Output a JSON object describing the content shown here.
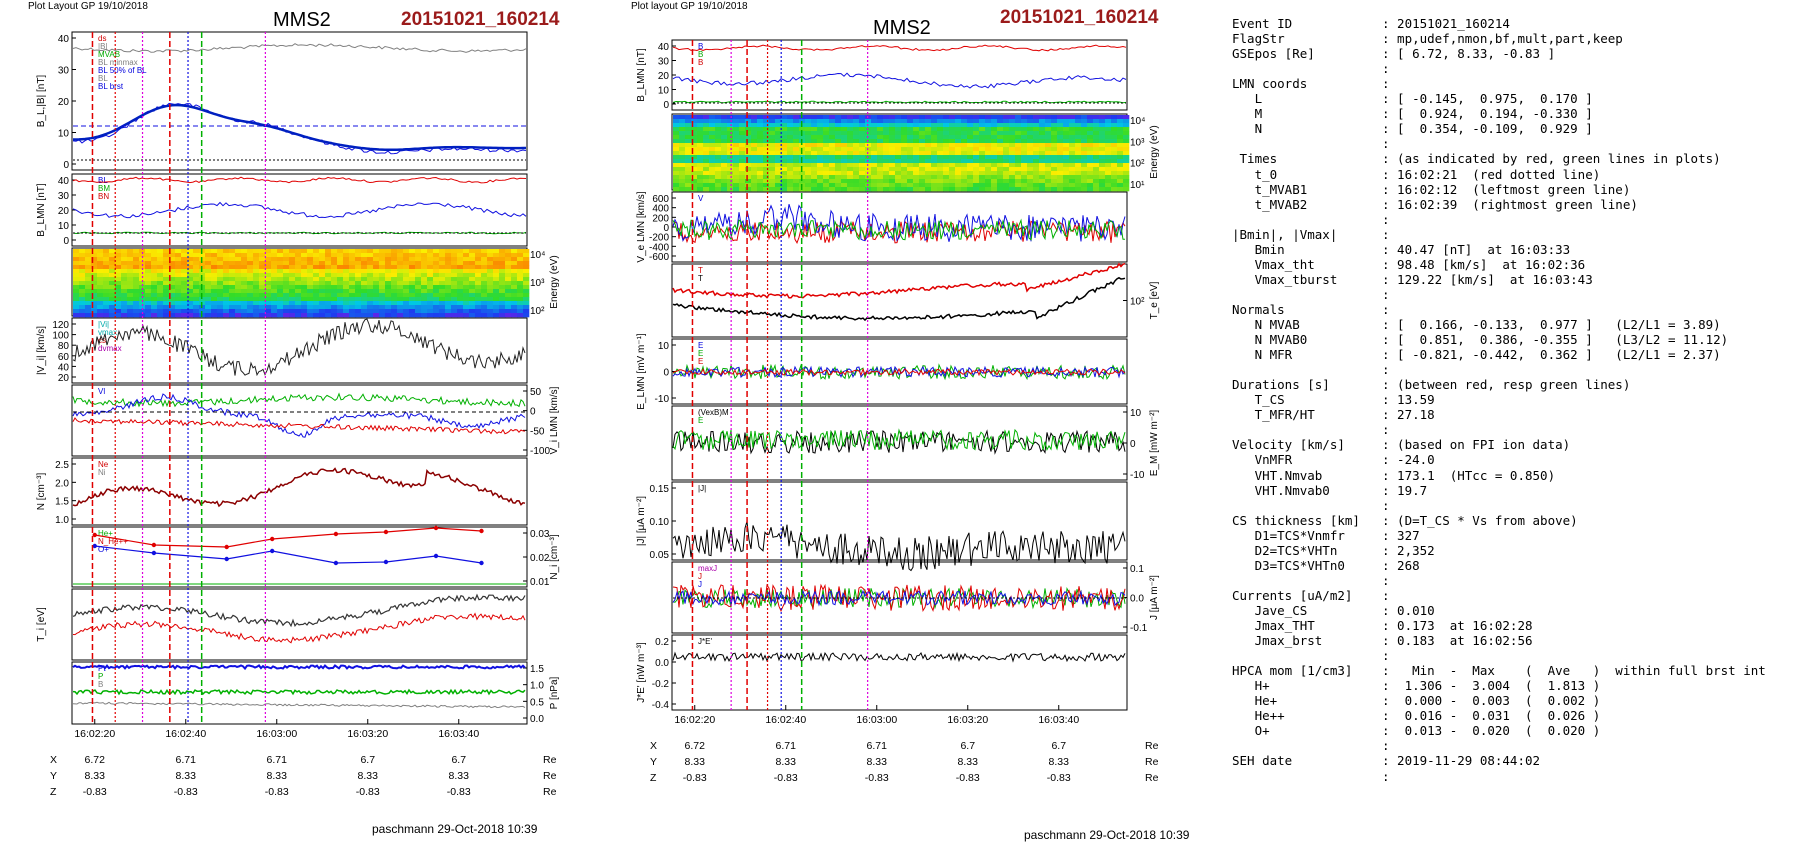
{
  "left": {
    "header": "Plot Layout GP 19/10/2018",
    "spacecraft": "MMS2",
    "event": "20151021_160214",
    "footer": "paschmann 29-Oct-2018 10:39",
    "time_ticks": [
      "16:02:20",
      "16:02:40",
      "16:03:00",
      "16:03:20",
      "16:03:40"
    ],
    "panels": [
      {
        "ylabel": "B_L,|B| [nT]",
        "ticks": [
          "40",
          "30",
          "20",
          "10",
          "0"
        ],
        "side": "left",
        "legend": [
          "ds",
          "|B|",
          "MVAB",
          "BL minmax",
          "BL 50% of BL",
          "BL",
          "BL brst"
        ],
        "legend_colors": [
          "#d00000",
          "#808080",
          "#00aa00",
          "#808080",
          "#0000dd",
          "#808080",
          "#0000dd"
        ]
      },
      {
        "ylabel": "B_LMN [nT]",
        "ticks": [
          "40",
          "30",
          "20",
          "10",
          "0"
        ],
        "side": "left",
        "legend": [
          "BL",
          "BM",
          "BN"
        ],
        "legend_colors": [
          "#0000dd",
          "#00aa00",
          "#d00000"
        ]
      },
      {
        "ylabel": "Energy (eV)",
        "ticks": [
          "10⁴",
          "10³",
          "10²"
        ],
        "side": "right",
        "legend": [],
        "legend_colors": []
      },
      {
        "ylabel": "|V_i| [km/s]",
        "ticks": [
          "120",
          "100",
          "80",
          "60",
          "40",
          "20"
        ],
        "side": "left",
        "legend": [
          "|Vi|",
          "vmax",
          "cs",
          "dvmax"
        ],
        "legend_colors": [
          "#00aaaa",
          "#00aaaa",
          "#d00000",
          "#aa00aa"
        ]
      },
      {
        "ylabel": "V_i LMN [km/s]",
        "ticks": [
          "50",
          "0",
          "-50",
          "-100"
        ],
        "side": "right",
        "legend": [
          "Vl"
        ],
        "legend_colors": [
          "#0000dd"
        ]
      },
      {
        "ylabel": "N [cm⁻³]",
        "ticks": [
          "2.5",
          "2.0",
          "1.5",
          "1.0"
        ],
        "side": "left",
        "legend": [
          "Ne",
          "Ni"
        ],
        "legend_colors": [
          "#d00000",
          "#808080"
        ]
      },
      {
        "ylabel": "N_i [cm⁻³]",
        "ticks": [
          "0.03",
          "0.02",
          "0.01"
        ],
        "side": "right",
        "legend": [
          "He+",
          "N_He++",
          "O+"
        ],
        "legend_colors": [
          "#00aa00",
          "#d00000",
          "#0000dd"
        ]
      },
      {
        "ylabel": "T_i [eV]",
        "ticks": [],
        "side": "left",
        "legend": [],
        "legend_colors": []
      },
      {
        "ylabel": "P [nPa]",
        "ticks": [
          "1.5",
          "1.0",
          "0.5",
          "0.0"
        ],
        "side": "right",
        "legend": [
          "Pt",
          "P",
          "B"
        ],
        "legend_colors": [
          "#0000dd",
          "#00aa00",
          "#808080"
        ]
      }
    ],
    "pos_table": {
      "labels": [
        "X",
        "Y",
        "Z"
      ],
      "units": [
        "Re",
        "Re",
        "Re"
      ],
      "rows": [
        [
          "6.72",
          "6.71",
          "6.71",
          "6.7",
          "6.7"
        ],
        [
          "8.33",
          "8.33",
          "8.33",
          "8.33",
          "8.33"
        ],
        [
          "-0.83",
          "-0.83",
          "-0.83",
          "-0.83",
          "-0.83"
        ]
      ]
    }
  },
  "middle": {
    "header": "Plot layout GP 19/10/2018",
    "spacecraft": "MMS2",
    "event": "20151021_160214",
    "footer": "paschmann 29-Oct-2018 10:39",
    "time_ticks": [
      "16:02:20",
      "16:02:40",
      "16:03:00",
      "16:03:20",
      "16:03:40"
    ],
    "panels": [
      {
        "ylabel": "B_LMN [nT]",
        "ticks": [
          "40",
          "30",
          "20",
          "10",
          "0"
        ],
        "side": "left",
        "legend": [
          "B",
          "B",
          "B"
        ],
        "legend_colors": [
          "#0000dd",
          "#00aa00",
          "#d00000"
        ]
      },
      {
        "ylabel": "Energy (eV)",
        "ticks": [
          "10⁴",
          "10³",
          "10²",
          "10¹"
        ],
        "side": "right",
        "legend": [],
        "legend_colors": []
      },
      {
        "ylabel": "V_e LMN [km/s]",
        "ticks": [
          "600",
          "400",
          "200",
          "0",
          "-200",
          "-400",
          "-600"
        ],
        "side": "left",
        "legend": [
          "V"
        ],
        "legend_colors": [
          "#0000dd"
        ]
      },
      {
        "ylabel": "T_e [eV]",
        "ticks": [
          "10²"
        ],
        "side": "right",
        "legend": [
          "T",
          "T"
        ],
        "legend_colors": [
          "#d00000",
          "#000000"
        ]
      },
      {
        "ylabel": "E_LMN [mV m⁻¹]",
        "ticks": [
          "10",
          "0",
          "-10"
        ],
        "side": "left",
        "legend": [
          "E",
          "E",
          "E"
        ],
        "legend_colors": [
          "#0000dd",
          "#00aa00",
          "#d00000"
        ]
      },
      {
        "ylabel": "E_M [mW m⁻²]",
        "ticks": [
          "10",
          "0",
          "-10"
        ],
        "side": "right",
        "legend": [
          "(VexB)M",
          "E"
        ],
        "legend_colors": [
          "#000000",
          "#00aa00"
        ]
      },
      {
        "ylabel": "|J| [μA m⁻²]",
        "ticks": [
          "0.15",
          "0.10",
          "0.05"
        ],
        "side": "left",
        "legend": [
          "|J|"
        ],
        "legend_colors": [
          "#000000"
        ]
      },
      {
        "ylabel": "J [μA m⁻²]",
        "ticks": [
          "0.1",
          "0.0",
          "-0.1"
        ],
        "side": "right",
        "legend": [
          "maxJ",
          "J",
          "J"
        ],
        "legend_colors": [
          "#aa00aa",
          "#d00000",
          "#0000dd"
        ]
      },
      {
        "ylabel": "J*E' [nW m⁻³]",
        "ticks": [
          "0.2",
          "0.0",
          "-0.2",
          "-0.4"
        ],
        "side": "left",
        "legend": [
          "J*E'"
        ],
        "legend_colors": [
          "#000000"
        ]
      }
    ],
    "pos_table": {
      "labels": [
        "X",
        "Y",
        "Z"
      ],
      "units": [
        "Re",
        "Re",
        "Re"
      ],
      "rows": [
        [
          "6.72",
          "6.71",
          "6.71",
          "6.7",
          "6.7"
        ],
        [
          "8.33",
          "8.33",
          "8.33",
          "8.33",
          "8.33"
        ],
        [
          "-0.83",
          "-0.83",
          "-0.83",
          "-0.83",
          "-0.83"
        ]
      ]
    }
  },
  "summary": {
    "lines": [
      {
        "k": "Event ID",
        "v": ": 20151021_160214"
      },
      {
        "k": "FlagStr",
        "v": ": mp,udef,nmon,bf,mult,part,keep"
      },
      {
        "k": "GSEpos [Re]",
        "v": ": [ 6.72, 8.33, -0.83 ]"
      },
      {
        "k": "",
        "v": ":"
      },
      {
        "k": "LMN coords",
        "v": ":"
      },
      {
        "k": "   L",
        "v": ": [ -0.145,  0.975,  0.170 ]"
      },
      {
        "k": "   M",
        "v": ": [  0.924,  0.194, -0.330 ]"
      },
      {
        "k": "   N",
        "v": ": [  0.354, -0.109,  0.929 ]"
      },
      {
        "k": "",
        "v": ":"
      },
      {
        "k": " Times",
        "v": ": (as indicated by red, green lines in plots)"
      },
      {
        "k": "   t_0",
        "v": ": 16:02:21  (red dotted line)"
      },
      {
        "k": "   t_MVAB1",
        "v": ": 16:02:12  (leftmost green line)"
      },
      {
        "k": "   t_MVAB2",
        "v": ": 16:02:39  (rightmost green line)"
      },
      {
        "k": "",
        "v": ":"
      },
      {
        "k": "|Bmin|, |Vmax|",
        "v": ":"
      },
      {
        "k": "   Bmin",
        "v": ": 40.47 [nT]  at 16:03:33"
      },
      {
        "k": "   Vmax_tht",
        "v": ": 98.48 [km/s]  at 16:02:36"
      },
      {
        "k": "   Vmax_tburst",
        "v": ": 129.22 [km/s]  at 16:03:43"
      },
      {
        "k": "",
        "v": ":"
      },
      {
        "k": "Normals",
        "v": ":"
      },
      {
        "k": "   N MVAB",
        "v": ": [  0.166, -0.133,  0.977 ]   (L2/L1 = 3.89)"
      },
      {
        "k": "   N MVAB0",
        "v": ": [  0.851,  0.386, -0.355 ]   (L3/L2 = 11.12)"
      },
      {
        "k": "   N MFR",
        "v": ": [ -0.821, -0.442,  0.362 ]   (L2/L1 = 2.37)"
      },
      {
        "k": "",
        "v": ":"
      },
      {
        "k": "Durations [s]",
        "v": ": (between red, resp green lines)"
      },
      {
        "k": "   T_CS",
        "v": ": 13.59"
      },
      {
        "k": "   T_MFR/HT",
        "v": ": 27.18"
      },
      {
        "k": "",
        "v": ":"
      },
      {
        "k": "Velocity [km/s]",
        "v": ": (based on FPI ion data)"
      },
      {
        "k": "   VnMFR",
        "v": ": -24.0"
      },
      {
        "k": "   VHT.Nmvab",
        "v": ": 173.1  (HTcc = 0.850)"
      },
      {
        "k": "   VHT.Nmvab0",
        "v": ": 19.7"
      },
      {
        "k": "",
        "v": ":"
      },
      {
        "k": "CS thickness [km]",
        "v": ": (D=T_CS * Vs from above)"
      },
      {
        "k": "   D1=TCS*Vnmfr",
        "v": ": 327"
      },
      {
        "k": "   D2=TCS*VHTn",
        "v": ": 2,352"
      },
      {
        "k": "   D3=TCS*VHTn0",
        "v": ": 268"
      },
      {
        "k": "",
        "v": ":"
      },
      {
        "k": "Currents [uA/m2]",
        "v": ":"
      },
      {
        "k": "   Jave_CS",
        "v": ": 0.010"
      },
      {
        "k": "   Jmax_THT",
        "v": ": 0.173  at 16:02:28"
      },
      {
        "k": "   Jmax_brst",
        "v": ": 0.183  at 16:02:56"
      },
      {
        "k": "",
        "v": ":"
      },
      {
        "k": "HPCA mom [1/cm3]",
        "v": ":   Min  -  Max    (  Ave   )  within full brst int"
      },
      {
        "k": "   H+",
        "v": ":  1.306 -  3.004  (  1.813 )"
      },
      {
        "k": "   He+",
        "v": ":  0.000 -  0.003  (  0.002 )"
      },
      {
        "k": "   He++",
        "v": ":  0.016 -  0.031  (  0.026 )"
      },
      {
        "k": "   O+",
        "v": ":  0.013 -  0.020  (  0.020 )"
      },
      {
        "k": "",
        "v": ":"
      },
      {
        "k": "SEH date",
        "v": ": 2019-11-29 08:44:02"
      },
      {
        "k": "",
        "v": ":"
      }
    ]
  },
  "colors": {
    "red": "#e00000",
    "green": "#00b000",
    "blue": "#1010e0",
    "gray": "#808080",
    "magenta": "#dd00dd",
    "black": "#000000"
  }
}
